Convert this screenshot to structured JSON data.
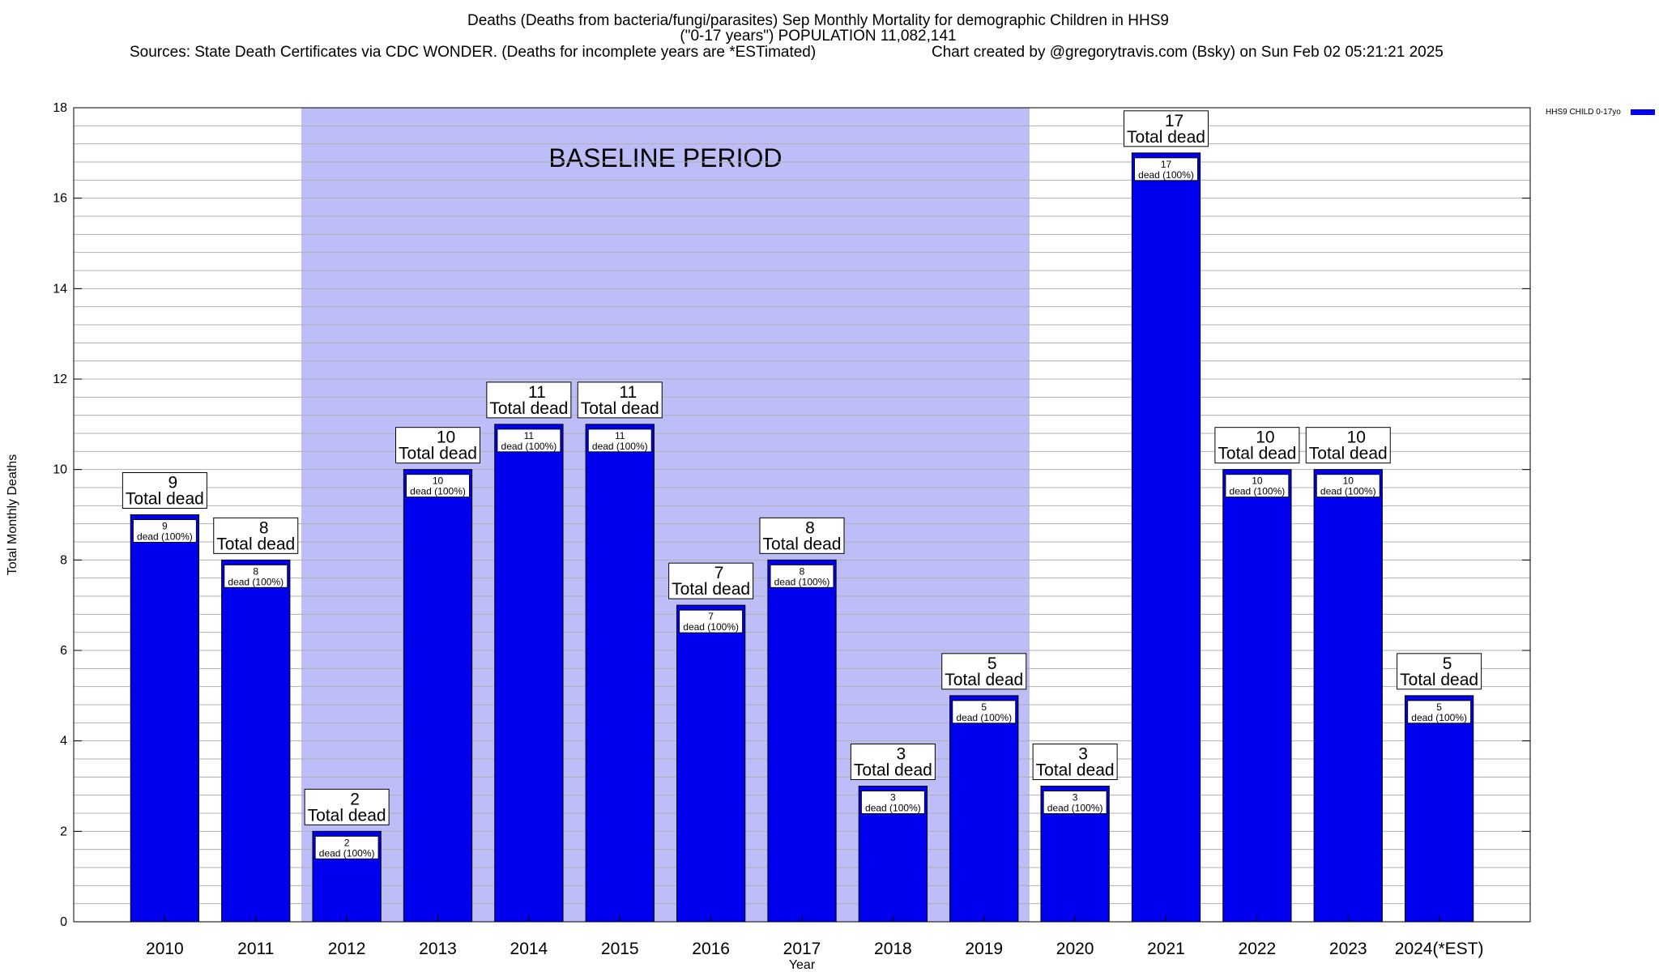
{
  "title_lines": [
    "Deaths (Deaths from bacteria/fungi/parasites) Sep Monthly Mortality for demographic Children in HHS9",
    "(\"0-17 years\") POPULATION 11,082,141"
  ],
  "sources_text": "Sources: State Death Certificates via CDC WONDER. (Deaths for incomplete years are *ESTimated)",
  "credit_text": "Chart created by @gregorytravis.com (Bsky) on Sun Feb 02 05:21:21 2025",
  "colors": {
    "bar": "#0000ee",
    "baseline_band": "#bdbdf7",
    "grid": "#b0b0b0"
  },
  "chart_data": {
    "type": "bar",
    "categories": [
      "2010",
      "2011",
      "2012",
      "2013",
      "2014",
      "2015",
      "2016",
      "2017",
      "2018",
      "2019",
      "2020",
      "2021",
      "2022",
      "2023",
      "2024(*EST)"
    ],
    "series": [
      {
        "name": "HHS9 CHILD 0-17yo",
        "values": [
          9,
          8,
          2,
          10,
          11,
          11,
          7,
          8,
          3,
          5,
          3,
          17,
          10,
          10,
          5
        ]
      }
    ],
    "xlabel": "Year",
    "ylabel": "Total Monthly Deaths",
    "ylim": [
      0,
      18
    ],
    "yticks": [
      0,
      2,
      4,
      6,
      8,
      10,
      12,
      14,
      16,
      18
    ],
    "minor_step": 0.4,
    "grid": true,
    "legend_position": "top-right, outside plot",
    "baseline_period": {
      "label": "BASELINE PERIOD",
      "start": "2012",
      "end": "2019"
    },
    "total_label": "Total dead",
    "inner_label": "dead (100%)"
  }
}
